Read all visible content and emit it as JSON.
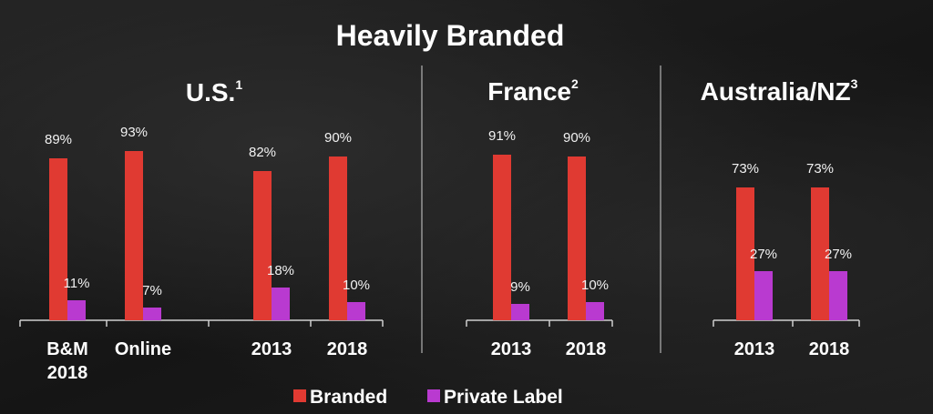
{
  "colors": {
    "background": "#1b1b1b",
    "branded": "#e03a32",
    "private_label": "#b93ad0",
    "text": "#ffffff",
    "divider": "#cfcfcf"
  },
  "chart_data": {
    "type": "bar",
    "title": "Heavily Branded",
    "value_suffix": "%",
    "series_names": [
      "Branded",
      "Private Label"
    ],
    "legend": {
      "position": "bottom-center",
      "items": [
        {
          "name": "Branded",
          "color": "#e03a32"
        },
        {
          "name": "Private Label",
          "color": "#b93ad0"
        }
      ]
    },
    "panels": [
      {
        "title": "U.S.",
        "sup": "1",
        "categories": [
          {
            "label": [
              "B&M",
              "2018"
            ],
            "branded": 89,
            "private_label": 11
          },
          {
            "label": [
              "Online"
            ],
            "branded": 93,
            "private_label": 7
          },
          {
            "label": [
              "2013"
            ],
            "branded": 82,
            "private_label": 18
          },
          {
            "label": [
              "2018"
            ],
            "branded": 90,
            "private_label": 10
          }
        ]
      },
      {
        "title": "France",
        "sup": "2",
        "categories": [
          {
            "label": [
              "2013"
            ],
            "branded": 91,
            "private_label": 9
          },
          {
            "label": [
              "2018"
            ],
            "branded": 90,
            "private_label": 10
          }
        ]
      },
      {
        "title": "Australia/NZ",
        "sup": "3",
        "categories": [
          {
            "label": [
              "2013"
            ],
            "branded": 73,
            "private_label": 27
          },
          {
            "label": [
              "2018"
            ],
            "branded": 73,
            "private_label": 27
          }
        ]
      }
    ]
  }
}
